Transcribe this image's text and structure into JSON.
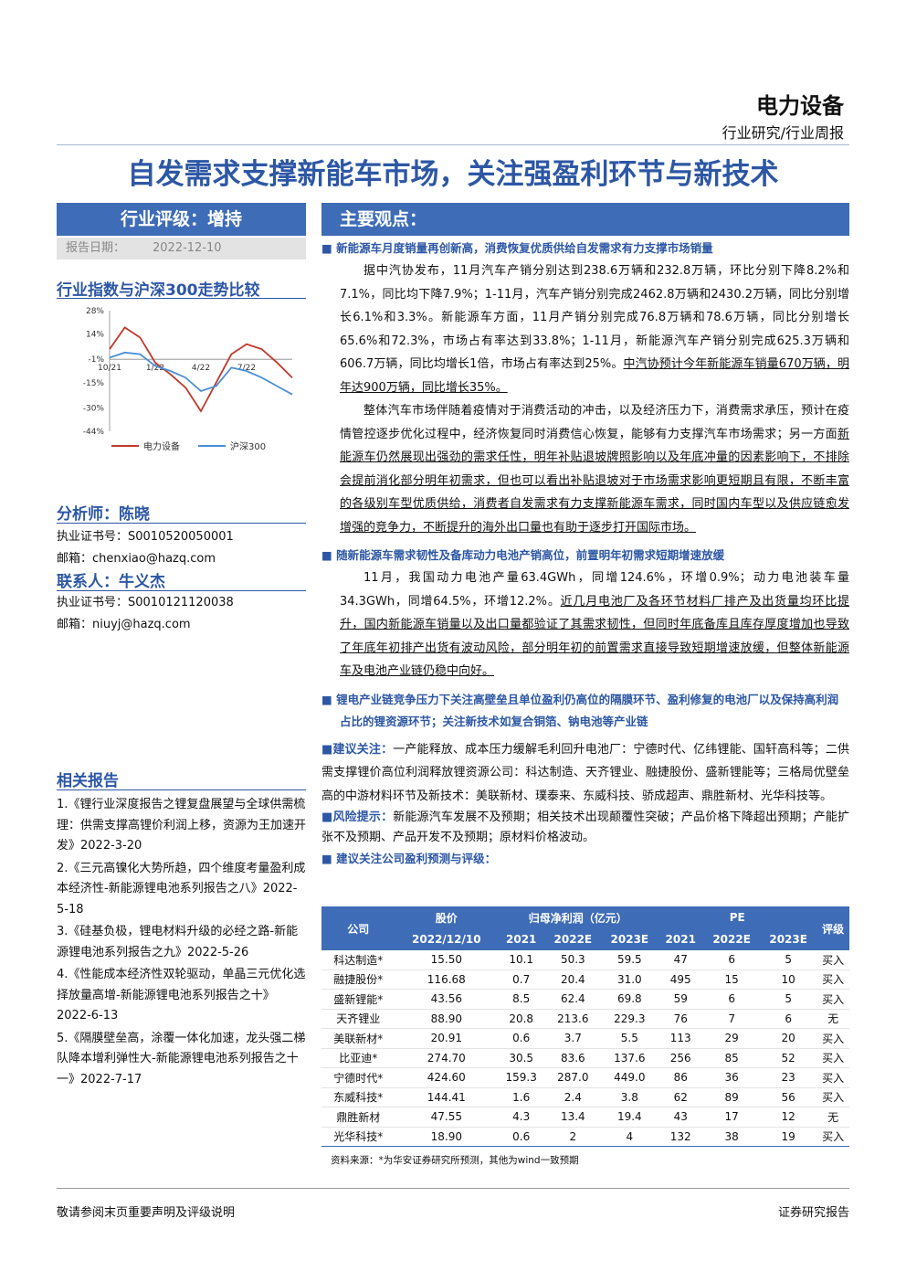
{
  "header": {
    "sector": "电力设备",
    "category": "行业研究/行业周报"
  },
  "title": "自发需求支撑新能车市场，关注强盈利环节与新技术",
  "rating": {
    "label": "行业评级：增持",
    "date_label": "报告日期：",
    "date": "2022-12-10"
  },
  "chart_data": {
    "type": "line",
    "title": "行业指数与沪深300走势比较",
    "categories": [
      "10/21",
      null,
      null,
      "1/22",
      null,
      null,
      "4/22",
      null,
      null,
      "7/22",
      null,
      null,
      null
    ],
    "series": [
      {
        "name": "电力设备",
        "color": "#c0392b",
        "values": [
          5,
          18,
          12,
          -3,
          -10,
          -18,
          -32,
          -15,
          2,
          8,
          5,
          -3,
          -12
        ]
      },
      {
        "name": "沪深300",
        "color": "#4a8fd6",
        "values": [
          0,
          3,
          2,
          -5,
          -8,
          -12,
          -20,
          -17,
          -6,
          -8,
          -12,
          -17,
          -22
        ]
      }
    ],
    "ylim": [
      -44,
      28
    ],
    "yticks": [
      {
        "value": 28,
        "label": "28%"
      },
      {
        "value": 14,
        "label": "14%"
      },
      {
        "value": -1,
        "label": "-1%"
      },
      {
        "value": -15,
        "label": "-15%"
      },
      {
        "value": -30,
        "label": "-30%"
      },
      {
        "value": -44,
        "label": "-44%"
      }
    ]
  },
  "analyst": {
    "label": "分析师：陈晓",
    "cert": "执业证书号：S0010520050001",
    "email": "邮箱：chenxiao@hazq.com"
  },
  "contact": {
    "label": "联系人：牛义杰",
    "cert": "执业证书号：S0010121120038",
    "email": "邮箱：niuyj@hazq.com"
  },
  "related": {
    "title": "相关报告",
    "items": [
      "1.《锂行业深度报告之锂复盘展望与全球供需梳理：供需支撑高锂价利润上移，资源为王加速开发》2022-3-20",
      "2.《三元高镍化大势所趋，四个维度考量盈利成本经济性-新能源锂电池系列报告之八》2022-5-18",
      "3.《硅基负极，锂电材料升级的必经之路-新能源锂电池系列报告之九》2022-5-26",
      "4.《性能成本经济性双轮驱动，单晶三元优化选择放量高增-新能源锂电池系列报告之十》2022-6-13",
      "5.《隔膜壁垒高，涂覆一体化加速，龙头强二梯队降本增利弹性大-新能源锂电池系列报告之十一》2022-7-17"
    ]
  },
  "main": {
    "title": "主要观点：",
    "b1": "新能源车月度销量再创新高，消费恢复优质供给自发需求有力支撑市场销量",
    "p1": "据中汽协发布，11月汽车产销分别达到238.6万辆和232.8万辆，环比分别下降8.2%和7.1%，同比均下降7.9%；1-11月，汽车产销分别完成2462.8万辆和2430.2万辆，同比分别增长6.1%和3.3%。新能源车方面，11月产销分别完成76.8万辆和78.6万辆，同比分别增长65.6%和72.3%，市场占有率达到33.8%；1-11月，新能源汽车产销分别完成625.3万辆和606.7万辆，同比均增长1倍，市场占有率达到25%。",
    "p1u": "中汽协预计今年新能源车销量670万辆，明年达900万辆，同比增长35%。",
    "p2": "整体汽车市场伴随着疫情对于消费活动的冲击，以及经济压力下，消费需求承压，预计在疫情管控逐步优化过程中，经济恢复同时消费信心恢复，能够有力支撑汽车市场需求；另一方面",
    "p2u": "新能源车仍然展现出强劲的需求任性，明年补贴退坡牌照影响以及年底冲量的因素影响下，不排除会提前消化部分明年初需求，但也可以看出补贴退坡对于市场需求影响更短期且有限，不断丰富的各级别车型优质供给，消费者自发需求有力支撑新能源车需求，同时国内车型以及供应链愈发增强的竞争力，不断提升的海外出口量也有助于逐步打开国际市场。",
    "b2": "随新能源车需求韧性及备库动力电池产销高位，前置明年初需求短期增速放缓",
    "p3": "11月，我国动力电池产量63.4GWh，同增124.6%，环增0.9%；动力电池装车量34.3GWh，同增64.5%，环增12.2%。",
    "p3u": "近几月电池厂及各环节材料厂排产及出货量均环比提升，国内新能源车销量以及出口量都验证了其需求韧性，但同时年底备库且库存厚度增加也导致了年底年初排产出货有波动风险，部分明年初的前置需求直接导致短期增速放缓，但整体新能源车及电池产业链仍稳中向好。",
    "b3": "锂电产业链竞争压力下关注高壁垒且单位盈利仍高位的隔膜环节、盈利修复的电池厂以及保持高利润占比的锂资源环节；关注新技术如复合铜箔、钠电池等产业链",
    "rec_label": "建议关注：",
    "rec": "一产能释放、成本压力缓解毛利回升电池厂：宁德时代、亿纬锂能、国轩高科等；二供需支撑锂价高位利润释放锂资源公司：科达制造、天齐锂业、融捷股份、盛新锂能等；三格局优壁垒高的中游材料环节及新技术：美联新材、璞泰来、东威科技、骄成超声、鼎胜新材、光华科技等。",
    "risk_label": "风险提示：",
    "risk": "新能源汽车发展不及预期；相关技术出现颠覆性突破；产品价格下降超出预期；产能扩张不及预期、产品开发不及预期；原材料价格波动。",
    "table_title": "建议关注公司盈利预测与评级："
  },
  "table": {
    "header_top": [
      "公司",
      "股价",
      "归母净利润（亿元）",
      "PE",
      "评级"
    ],
    "header_sub": [
      "2022/12/10",
      "2021",
      "2022E",
      "2023E",
      "2021",
      "2022E",
      "2023E"
    ],
    "rows": [
      [
        "科达制造*",
        "15.50",
        "10.1",
        "50.3",
        "59.5",
        "47",
        "6",
        "5",
        "买入"
      ],
      [
        "融捷股份*",
        "116.68",
        "0.7",
        "20.4",
        "31.0",
        "495",
        "15",
        "10",
        "买入"
      ],
      [
        "盛新锂能*",
        "43.56",
        "8.5",
        "62.4",
        "69.8",
        "59",
        "6",
        "5",
        "买入"
      ],
      [
        "天齐锂业",
        "88.90",
        "20.8",
        "213.6",
        "229.3",
        "76",
        "7",
        "6",
        "无"
      ],
      [
        "美联新材*",
        "20.91",
        "0.6",
        "3.7",
        "5.5",
        "113",
        "29",
        "20",
        "买入"
      ],
      [
        "比亚迪*",
        "274.70",
        "30.5",
        "83.6",
        "137.6",
        "256",
        "85",
        "52",
        "买入"
      ],
      [
        "宁德时代*",
        "424.60",
        "159.3",
        "287.0",
        "449.0",
        "86",
        "36",
        "23",
        "买入"
      ],
      [
        "东威科技*",
        "144.41",
        "1.6",
        "2.4",
        "3.8",
        "62",
        "89",
        "56",
        "买入"
      ],
      [
        "鼎胜新材",
        "47.55",
        "4.3",
        "13.4",
        "19.4",
        "43",
        "17",
        "12",
        "无"
      ],
      [
        "光华科技*",
        "18.90",
        "0.6",
        "2",
        "4",
        "132",
        "38",
        "19",
        "买入"
      ]
    ],
    "source": "资料来源：*为华安证券研究所预测，其他为wind一致预期"
  },
  "footer": {
    "left": "敬请参阅末页重要声明及评级说明",
    "right": "证券研究报告"
  }
}
